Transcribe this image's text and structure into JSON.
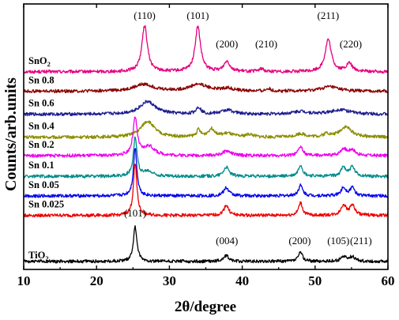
{
  "chart_data": {
    "type": "line",
    "title": "",
    "xlabel": "2θ/degree",
    "ylabel": "Counts/arb.units",
    "xlim": [
      10,
      60
    ],
    "xticks": [
      10,
      20,
      30,
      40,
      50,
      60
    ],
    "grid": false,
    "legend": "none",
    "series": [
      {
        "name": "SnO2",
        "label_main": "SnO",
        "label_sub": "2",
        "color": "#e6007e",
        "baseline": 8.6,
        "peaks": [
          [
            26.6,
            2.0,
            0.45
          ],
          [
            33.9,
            1.95,
            0.45
          ],
          [
            37.9,
            0.45,
            0.5
          ],
          [
            42.6,
            0.12,
            0.4
          ],
          [
            51.8,
            1.4,
            0.5
          ],
          [
            54.7,
            0.35,
            0.5
          ]
        ],
        "annotations": [
          {
            "text": "(110)",
            "x": 26.6
          },
          {
            "text": "(101)",
            "x": 33.9
          },
          {
            "text": "(200)",
            "x": 37.9
          },
          {
            "text": "(210)",
            "x": 43.3
          },
          {
            "text": "(211)",
            "x": 51.8
          },
          {
            "text": "(220)",
            "x": 54.9
          }
        ]
      },
      {
        "name": "Sn 0.8",
        "color": "#8b0000",
        "baseline": 7.75,
        "peaks": [
          [
            26.5,
            0.3,
            1.6
          ],
          [
            34.0,
            0.3,
            1.5
          ],
          [
            38.0,
            0.12,
            1.0
          ],
          [
            43.6,
            0.12,
            0.3
          ],
          [
            52.0,
            0.2,
            1.4
          ]
        ]
      },
      {
        "name": "Sn 0.6",
        "color": "#1c1c8f",
        "baseline": 6.75,
        "peaks": [
          [
            27.0,
            0.55,
            1.3
          ],
          [
            34.0,
            0.3,
            0.4
          ],
          [
            38.0,
            0.18,
            1.0
          ],
          [
            48.0,
            0.12,
            1.2
          ],
          [
            53.5,
            0.2,
            1.5
          ]
        ]
      },
      {
        "name": "Sn 0.4",
        "color": "#8c8c00",
        "baseline": 5.75,
        "peaks": [
          [
            27.0,
            0.7,
            1.1
          ],
          [
            34.0,
            0.3,
            0.3
          ],
          [
            35.8,
            0.35,
            0.6
          ],
          [
            38.0,
            0.15,
            0.8
          ],
          [
            41.0,
            0.12,
            0.6
          ],
          [
            48.0,
            0.15,
            0.8
          ],
          [
            51.6,
            0.15,
            0.4
          ],
          [
            54.2,
            0.45,
            1.0
          ]
        ]
      },
      {
        "name": "Sn 0.2",
        "color": "#ee00ee",
        "baseline": 4.95,
        "peaks": [
          [
            25.3,
            1.6,
            0.35
          ],
          [
            27.2,
            0.4,
            0.9
          ],
          [
            37.9,
            0.2,
            0.7
          ],
          [
            48.0,
            0.4,
            0.35
          ],
          [
            53.9,
            0.3,
            0.5
          ],
          [
            55.1,
            0.25,
            0.5
          ]
        ]
      },
      {
        "name": "Sn 0.1",
        "color": "#008b8b",
        "baseline": 4.05,
        "peaks": [
          [
            25.3,
            1.7,
            0.3
          ],
          [
            27.1,
            0.2,
            0.8
          ],
          [
            37.8,
            0.4,
            0.45
          ],
          [
            48.0,
            0.5,
            0.35
          ],
          [
            53.9,
            0.4,
            0.4
          ],
          [
            55.1,
            0.4,
            0.4
          ]
        ]
      },
      {
        "name": "Sn 0.05",
        "color": "#0000ee",
        "baseline": 3.2,
        "peaks": [
          [
            25.3,
            2.1,
            0.28
          ],
          [
            37.8,
            0.35,
            0.45
          ],
          [
            48.0,
            0.45,
            0.35
          ],
          [
            53.9,
            0.35,
            0.4
          ],
          [
            55.1,
            0.35,
            0.4
          ]
        ]
      },
      {
        "name": "Sn 0.025",
        "color": "#ee0000",
        "baseline": 2.35,
        "peaks": [
          [
            25.3,
            2.3,
            0.28
          ],
          [
            37.8,
            0.45,
            0.4
          ],
          [
            48.0,
            0.55,
            0.32
          ],
          [
            53.9,
            0.45,
            0.4
          ],
          [
            55.1,
            0.45,
            0.4
          ]
        ]
      },
      {
        "name": "TiO2",
        "label_main": "TiO",
        "label_sub": "2",
        "color": "#000000",
        "baseline": 0.35,
        "peaks": [
          [
            25.3,
            1.5,
            0.3
          ],
          [
            37.8,
            0.25,
            0.45
          ],
          [
            48.0,
            0.4,
            0.35
          ],
          [
            53.9,
            0.2,
            0.45
          ],
          [
            55.1,
            0.2,
            0.45
          ]
        ],
        "annotations": [
          {
            "text": "(101)",
            "x": 25.3
          },
          {
            "text": "(004)",
            "x": 37.9
          },
          {
            "text": "(200)",
            "x": 47.9
          },
          {
            "text": "(105)",
            "x": 53.2
          },
          {
            "text": "(211)",
            "x": 56.3
          }
        ]
      }
    ]
  }
}
